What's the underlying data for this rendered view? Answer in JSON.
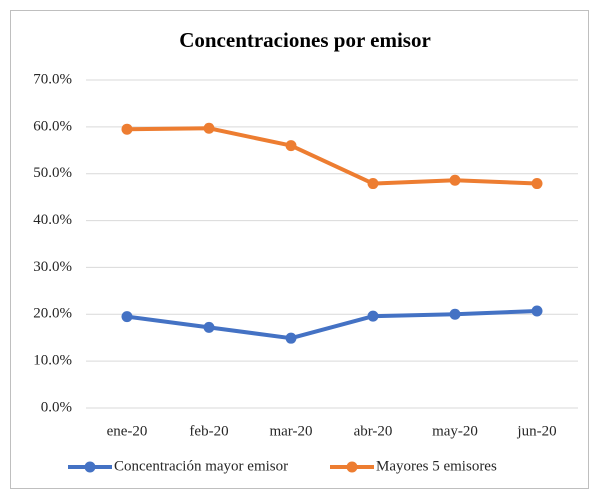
{
  "chart_data": {
    "type": "line",
    "title": "Concentraciones por emisor",
    "categories": [
      "ene-20",
      "feb-20",
      "mar-20",
      "abr-20",
      "may-20",
      "jun-20"
    ],
    "series": [
      {
        "name": "Concentración mayor emisor",
        "color": "#4472c4",
        "values": [
          19.5,
          17.2,
          14.9,
          19.6,
          20.0,
          20.7
        ]
      },
      {
        "name": "Mayores 5 emisores",
        "color": "#ed7d31",
        "values": [
          59.5,
          59.7,
          56.0,
          47.9,
          48.6,
          47.9
        ]
      }
    ],
    "ylim": [
      0,
      70
    ],
    "yticks": [
      {
        "value": 0,
        "label": "0.0%"
      },
      {
        "value": 10,
        "label": "10.0%"
      },
      {
        "value": 20,
        "label": "20.0%"
      },
      {
        "value": 30,
        "label": "30.0%"
      },
      {
        "value": 40,
        "label": "40.0%"
      },
      {
        "value": 50,
        "label": "50.0%"
      },
      {
        "value": 60,
        "label": "60.0%"
      },
      {
        "value": 70,
        "label": "70.0%"
      }
    ],
    "grid": true,
    "legend": "bottom"
  }
}
